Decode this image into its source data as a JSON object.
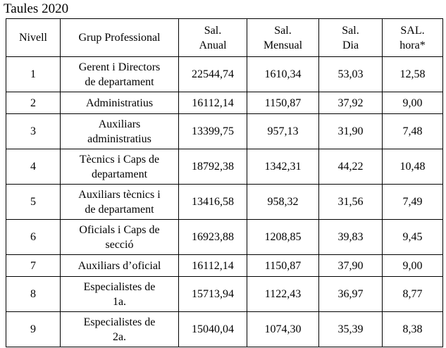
{
  "title": "Taules 2020",
  "table": {
    "headers": [
      "Nivell",
      "Grup Professional",
      "Sal.\nAnual",
      "Sal.\nMensual",
      "Sal.\nDia",
      "SAL.\nhora*"
    ],
    "rows": [
      {
        "nivell": "1",
        "grup": "Gerent i Directors\nde departament",
        "anual": "22544,74",
        "mensual": "1610,34",
        "dia": "53,03",
        "hora": "12,58"
      },
      {
        "nivell": "2",
        "grup": "Administratius",
        "anual": "16112,14",
        "mensual": "1150,87",
        "dia": "37,92",
        "hora": "9,00"
      },
      {
        "nivell": "3",
        "grup": "Auxiliars\nadministratius",
        "anual": "13399,75",
        "mensual": "957,13",
        "dia": "31,90",
        "hora": "7,48"
      },
      {
        "nivell": "4",
        "grup": "Tècnics i Caps de\ndepartament",
        "anual": "18792,38",
        "mensual": "1342,31",
        "dia": "44,22",
        "hora": "10,48"
      },
      {
        "nivell": "5",
        "grup": "Auxiliars tècnics i\nde departament",
        "anual": "13416,58",
        "mensual": "958,32",
        "dia": "31,56",
        "hora": "7,49"
      },
      {
        "nivell": "6",
        "grup": "Oficials i Caps de\nsecció",
        "anual": "16923,88",
        "mensual": "1208,85",
        "dia": "39,83",
        "hora": "9,45"
      },
      {
        "nivell": "7",
        "grup": "Auxiliars d’oficial",
        "anual": "16112,14",
        "mensual": "1150,87",
        "dia": "37,90",
        "hora": "9,00"
      },
      {
        "nivell": "8",
        "grup": "Especialistes de\n1a.",
        "anual": "15713,94",
        "mensual": "1122,43",
        "dia": "36,97",
        "hora": "8,77"
      },
      {
        "nivell": "9",
        "grup": "Especialistes de\n2a.",
        "anual": "15040,04",
        "mensual": "1074,30",
        "dia": "35,39",
        "hora": "8,38"
      }
    ]
  }
}
